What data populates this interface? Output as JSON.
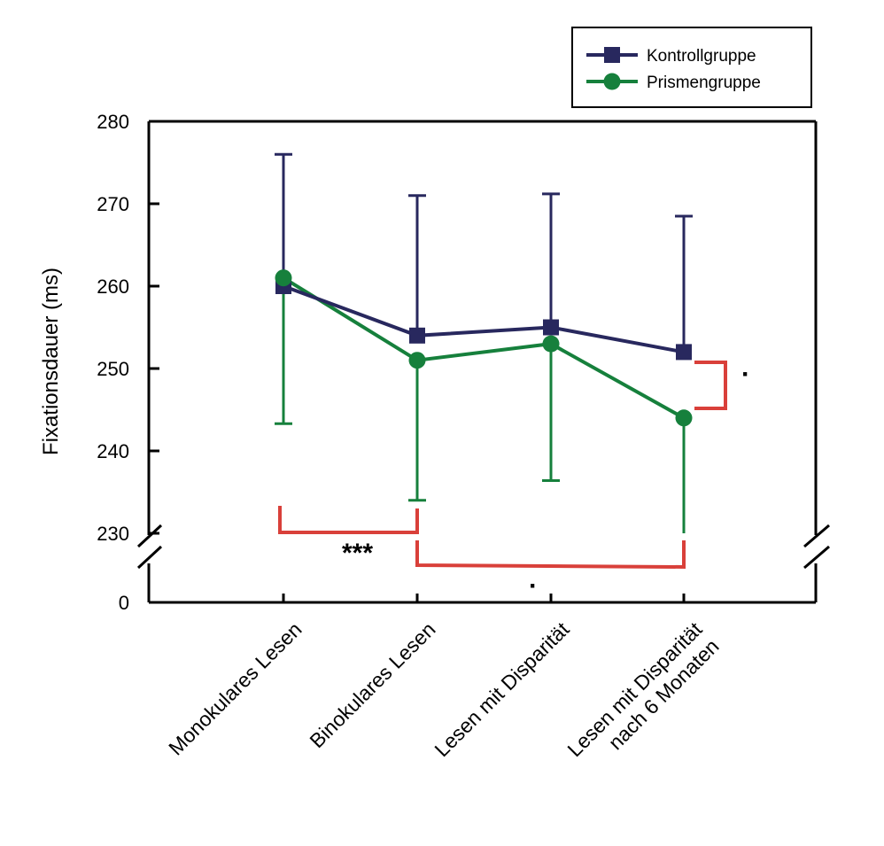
{
  "chart_data": {
    "type": "line",
    "title": "",
    "xlabel": "",
    "ylabel": "Fixationsdauer (ms)",
    "categories": [
      "Monokulares Lesen",
      "Binokulares Lesen",
      "Lesen mit Disparität",
      "Lesen mit Disparität\nnach 6 Monaten"
    ],
    "ylim": [
      230,
      280
    ],
    "axis_break": true,
    "y_break_lower_tick": "0",
    "yticks": [
      280,
      270,
      260,
      250,
      240,
      230
    ],
    "grid": false,
    "legend_position": "top-right",
    "colors": {
      "kontroll": "#28285e",
      "prismen": "#16803c",
      "significance": "#d9403a"
    },
    "series": [
      {
        "name": "Kontrollgruppe",
        "marker": "square",
        "values": [
          260,
          254,
          255,
          252
        ],
        "error_upper": [
          276,
          271,
          271.2,
          268.5
        ],
        "error_lower": [
          null,
          null,
          null,
          null
        ]
      },
      {
        "name": "Prismengruppe",
        "marker": "circle",
        "values": [
          261,
          251,
          253,
          244
        ],
        "error_upper": [
          null,
          null,
          null,
          null
        ],
        "error_lower": [
          243.3,
          234,
          236.4,
          230
        ]
      }
    ],
    "significance": [
      {
        "between": [
          0,
          1
        ],
        "label": "***",
        "scope": "Prismengruppe"
      },
      {
        "between": [
          1,
          3
        ],
        "label": "·",
        "scope": "Prismengruppe"
      },
      {
        "between_series_at": 3,
        "label": "·",
        "scope": "Kontrollgruppe vs Prismengruppe"
      }
    ]
  }
}
